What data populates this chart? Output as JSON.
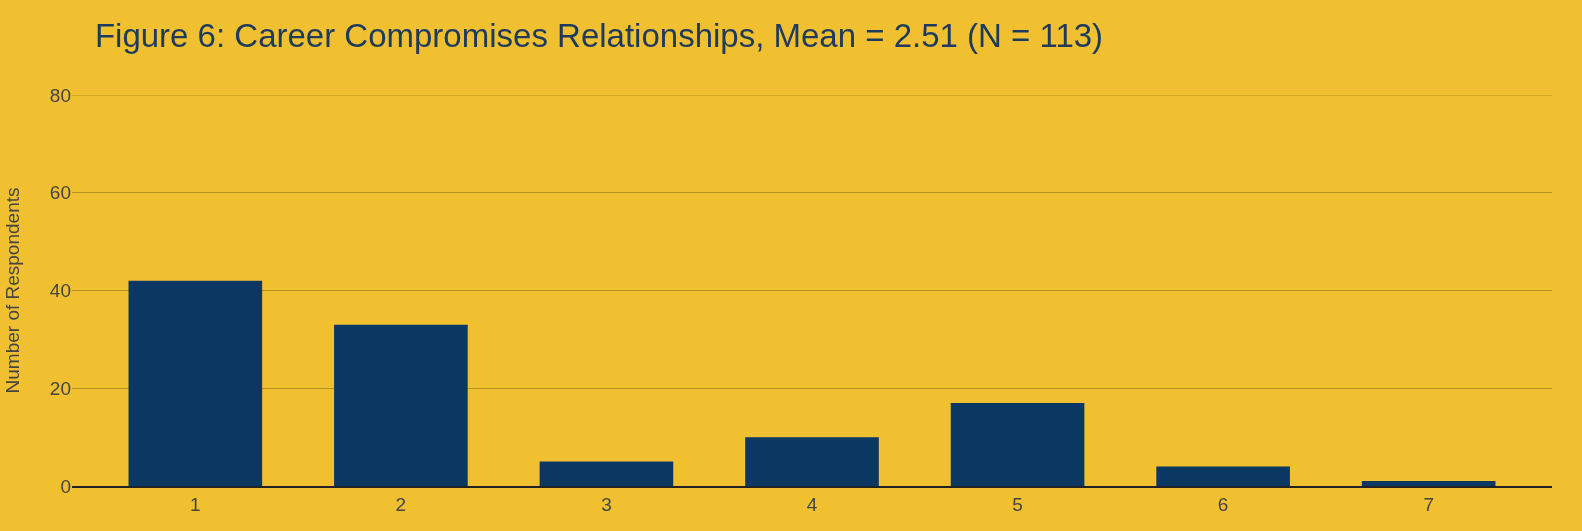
{
  "chart_data": {
    "type": "bar",
    "title": "Figure 6: Career Compromises Relationships, Mean = 2.51 (N = 113)",
    "ylabel": "Number of Respondents",
    "categories": [
      "1",
      "2",
      "3",
      "4",
      "5",
      "6",
      "7"
    ],
    "values": [
      42,
      33,
      5,
      10,
      17,
      4,
      1
    ],
    "color": "#0b3763",
    "ylim": [
      0,
      80
    ],
    "yticks": [
      0,
      20,
      40,
      60,
      80
    ],
    "grid": "y"
  }
}
